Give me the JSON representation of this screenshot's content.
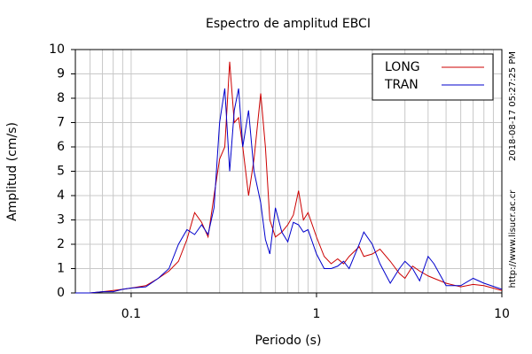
{
  "chart_data": {
    "type": "line",
    "title": "Espectro de amplitud EBCI",
    "xlabel": "Periodo (s)",
    "ylabel": "Amplitud (cm/s)",
    "side_texts": [
      "2018-08-17 05:27:25 PM",
      "http://www.lisucr.ac.cr"
    ],
    "x": [
      0.05,
      0.06,
      0.07,
      0.08,
      0.09,
      0.1,
      0.12,
      0.14,
      0.16,
      0.18,
      0.2,
      0.22,
      0.24,
      0.26,
      0.28,
      0.3,
      0.32,
      0.34,
      0.36,
      0.38,
      0.4,
      0.43,
      0.46,
      0.5,
      0.53,
      0.56,
      0.6,
      0.65,
      0.7,
      0.75,
      0.8,
      0.85,
      0.9,
      1,
      1.1,
      1.2,
      1.3,
      1.4,
      1.5,
      1.7,
      1.8,
      2,
      2.2,
      2.5,
      2.8,
      3,
      3.3,
      3.6,
      4,
      4.3,
      5,
      6,
      7,
      8,
      10
    ],
    "series": [
      {
        "name": "LONG",
        "color": "#cc0000",
        "values": [
          0,
          0,
          0.05,
          0.1,
          0.15,
          0.2,
          0.3,
          0.6,
          0.9,
          1.3,
          2.2,
          3.3,
          2.9,
          2.3,
          4,
          5.5,
          6,
          9.5,
          7,
          7.2,
          6,
          4,
          5.5,
          8.2,
          6,
          3,
          2.3,
          2.5,
          2.8,
          3.2,
          4.2,
          3,
          3.3,
          2.3,
          1.5,
          1.2,
          1.4,
          1.2,
          1.5,
          1.9,
          1.5,
          1.6,
          1.8,
          1.3,
          0.8,
          0.6,
          1.1,
          0.9,
          0.7,
          0.6,
          0.4,
          0.25,
          0.35,
          0.3,
          0.1
        ]
      },
      {
        "name": "TRAN",
        "color": "#0000cc",
        "values": [
          0,
          0,
          0.05,
          0.05,
          0.15,
          0.2,
          0.25,
          0.6,
          1,
          2,
          2.6,
          2.4,
          2.8,
          2.4,
          3.5,
          7,
          8.4,
          5,
          7.5,
          8.4,
          6,
          7.5,
          5,
          3.7,
          2.2,
          1.6,
          3.5,
          2.5,
          2.1,
          2.9,
          2.8,
          2.5,
          2.6,
          1.6,
          1,
          1,
          1.1,
          1.3,
          1,
          2,
          2.5,
          2,
          1.2,
          0.4,
          1,
          1.3,
          1,
          0.5,
          1.5,
          1.2,
          0.3,
          0.3,
          0.6,
          0.4,
          0.15
        ]
      }
    ],
    "xlog": true,
    "xlim": [
      0.05,
      10
    ],
    "xticks": [
      0.1,
      1,
      10
    ],
    "xminorticks": [
      0.06,
      0.07,
      0.08,
      0.09,
      0.2,
      0.3,
      0.4,
      0.5,
      0.6,
      0.7,
      0.8,
      0.9,
      2,
      3,
      4,
      5,
      6,
      7,
      8,
      9
    ],
    "ylim": [
      0,
      10
    ],
    "yticks": [
      0,
      1,
      2,
      3,
      4,
      5,
      6,
      7,
      8,
      9,
      10
    ],
    "grid": true,
    "legend": "upper right"
  }
}
